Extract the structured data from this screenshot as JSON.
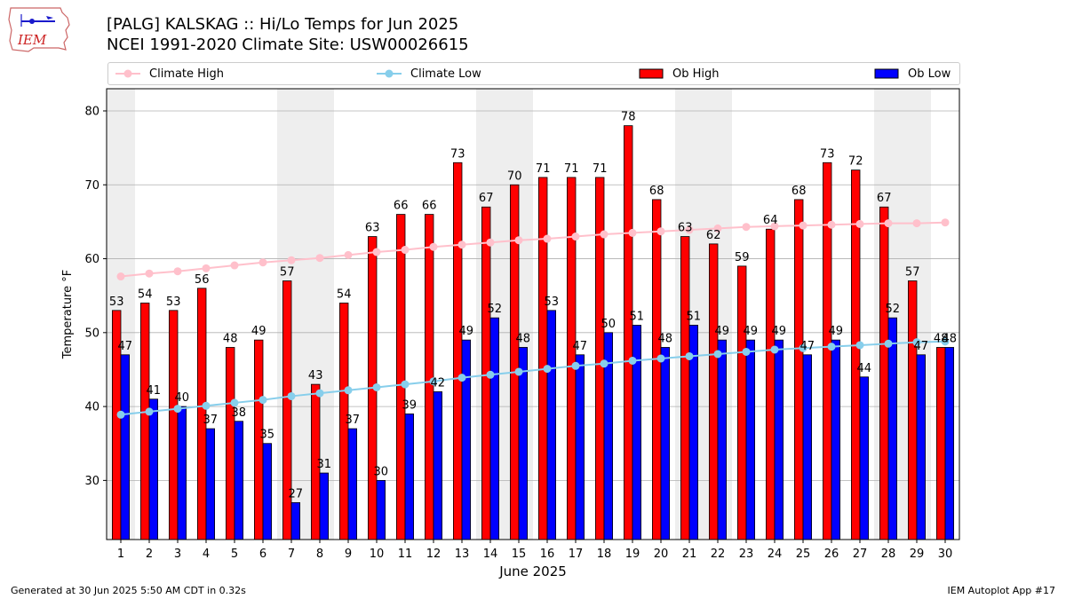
{
  "logo_text": "IEM",
  "title_line1": "[PALG] KALSKAG :: Hi/Lo Temps for Jun 2025",
  "title_line2": "NCEI 1991-2020 Climate Site: USW00026615",
  "footer_left": "Generated at 30 Jun 2025 5:50 AM CDT in 0.32s",
  "footer_right": "IEM Autoplot App #17",
  "colors": {
    "climate_high": "#ffc0cb",
    "climate_low": "#87ceeb",
    "ob_high": "#ff0000",
    "ob_low": "#0000ff",
    "weekend_shade": "#eeeeee",
    "grid": "#b0b0b0"
  },
  "chart_data": {
    "type": "bar",
    "xlabel": "June 2025",
    "ylabel": "Temperature °F",
    "ylim": [
      22,
      83
    ],
    "yticks": [
      30,
      40,
      50,
      60,
      70,
      80
    ],
    "grid": "horizontal",
    "legend_placement": "top",
    "categories": [
      "1",
      "2",
      "3",
      "4",
      "5",
      "6",
      "7",
      "8",
      "9",
      "10",
      "11",
      "12",
      "13",
      "14",
      "15",
      "16",
      "17",
      "18",
      "19",
      "20",
      "21",
      "22",
      "23",
      "24",
      "25",
      "26",
      "27",
      "28",
      "29",
      "30"
    ],
    "shaded_days": [
      1,
      7,
      8,
      14,
      15,
      21,
      22,
      28,
      29
    ],
    "series": [
      {
        "name": "Climate High",
        "kind": "line",
        "values": [
          57.6,
          58.0,
          58.3,
          58.7,
          59.1,
          59.5,
          59.8,
          60.1,
          60.5,
          60.9,
          61.2,
          61.6,
          61.9,
          62.2,
          62.5,
          62.7,
          63.0,
          63.3,
          63.5,
          63.7,
          63.9,
          64.1,
          64.3,
          64.4,
          64.5,
          64.6,
          64.7,
          64.8,
          64.8,
          64.9
        ]
      },
      {
        "name": "Climate Low",
        "kind": "line",
        "values": [
          38.9,
          39.3,
          39.7,
          40.1,
          40.5,
          40.9,
          41.4,
          41.8,
          42.2,
          42.6,
          43.0,
          43.4,
          43.9,
          44.3,
          44.7,
          45.1,
          45.5,
          45.8,
          46.2,
          46.5,
          46.8,
          47.1,
          47.4,
          47.7,
          47.9,
          48.1,
          48.3,
          48.5,
          48.7,
          48.8
        ]
      },
      {
        "name": "Ob High",
        "kind": "bar",
        "values": [
          53,
          54,
          53,
          56,
          48,
          49,
          57,
          43,
          54,
          63,
          66,
          66,
          73,
          67,
          70,
          71,
          71,
          71,
          78,
          68,
          63,
          62,
          59,
          64,
          68,
          73,
          72,
          67,
          57,
          48
        ]
      },
      {
        "name": "Ob Low",
        "kind": "bar",
        "values": [
          47,
          41,
          40,
          37,
          38,
          35,
          27,
          31,
          37,
          30,
          39,
          42,
          49,
          52,
          48,
          53,
          47,
          50,
          51,
          48,
          51,
          49,
          49,
          49,
          47,
          49,
          44,
          52,
          47,
          48
        ]
      }
    ]
  }
}
